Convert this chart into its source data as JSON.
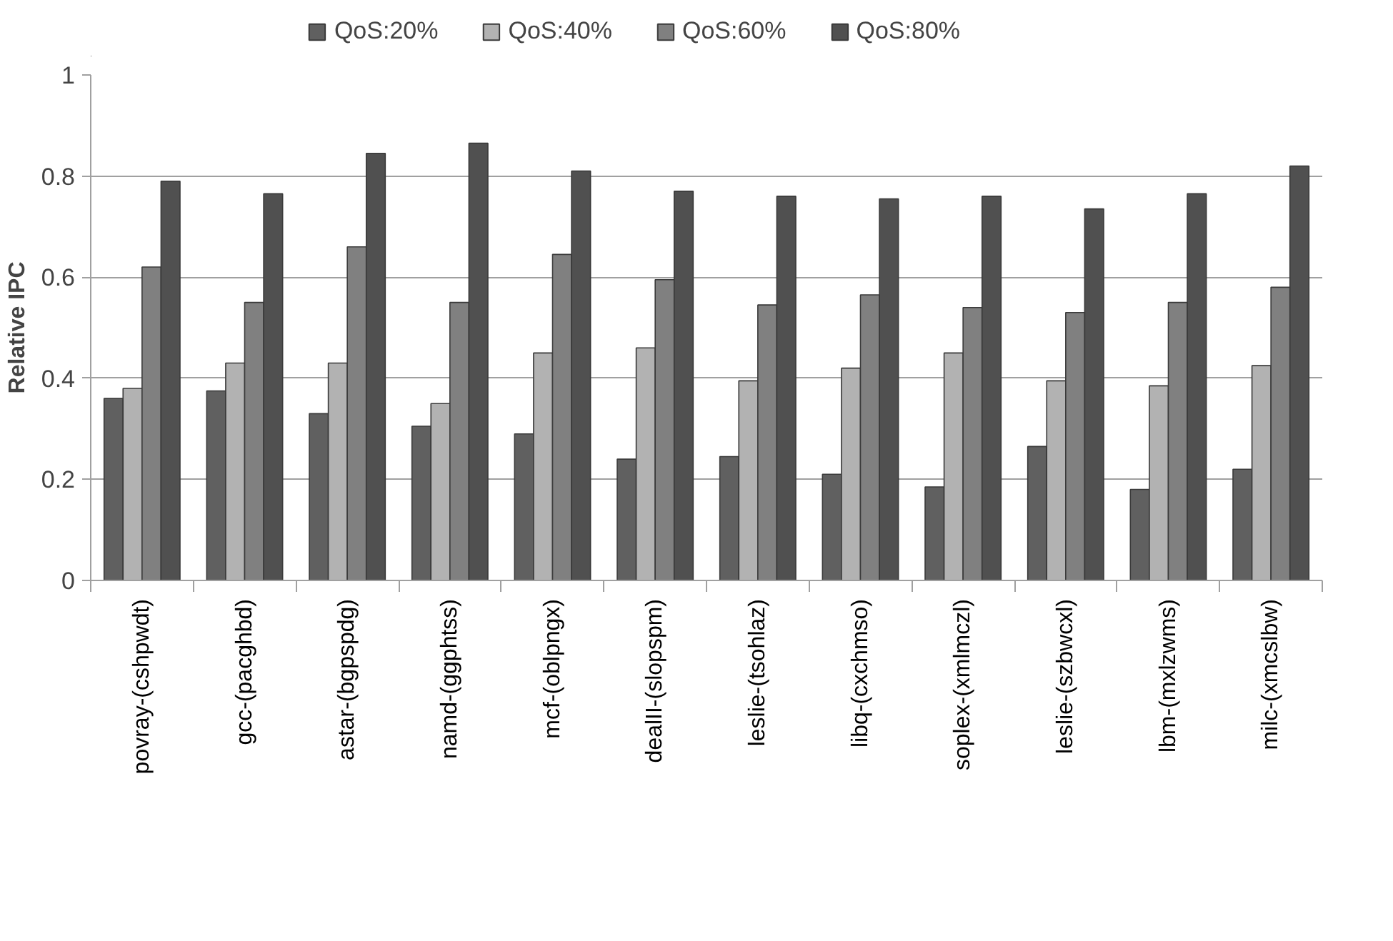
{
  "chart_data": {
    "type": "bar",
    "ylabel": "Relative IPC",
    "categories": [
      "povray-(cshpwdt)",
      "gcc-(pacghbd)",
      "astar-(bgpspdg)",
      "namd-(ggphtss)",
      "mcf-(oblpngx)",
      "dealII-(slopspm)",
      "leslie-(tsohlaz)",
      "libq-(cxchmso)",
      "soplex-(xmlmczl)",
      "leslie-(szbwcxl)",
      "lbm-(mxlzwms)",
      "milc-(xmcslbw)"
    ],
    "series": [
      {
        "name": "QoS:20%",
        "color": "#606060",
        "values": [
          0.36,
          0.375,
          0.33,
          0.305,
          0.29,
          0.24,
          0.245,
          0.21,
          0.185,
          0.265,
          0.18,
          0.22
        ]
      },
      {
        "name": "QoS:40%",
        "color": "#b2b2b2",
        "values": [
          0.38,
          0.43,
          0.43,
          0.35,
          0.45,
          0.46,
          0.395,
          0.42,
          0.45,
          0.395,
          0.385,
          0.425
        ]
      },
      {
        "name": "QoS:60%",
        "color": "#808080",
        "values": [
          0.62,
          0.55,
          0.66,
          0.55,
          0.645,
          0.595,
          0.545,
          0.565,
          0.54,
          0.53,
          0.55,
          0.58
        ]
      },
      {
        "name": "QoS:80%",
        "color": "#505050",
        "values": [
          0.79,
          0.765,
          0.845,
          0.865,
          0.81,
          0.77,
          0.76,
          0.755,
          0.76,
          0.735,
          0.765,
          0.82
        ]
      }
    ],
    "ylim": [
      0,
      1
    ],
    "yticks": [
      0,
      0.2,
      0.4,
      0.6,
      0.8,
      1
    ],
    "grid": "y",
    "legend": "top"
  }
}
